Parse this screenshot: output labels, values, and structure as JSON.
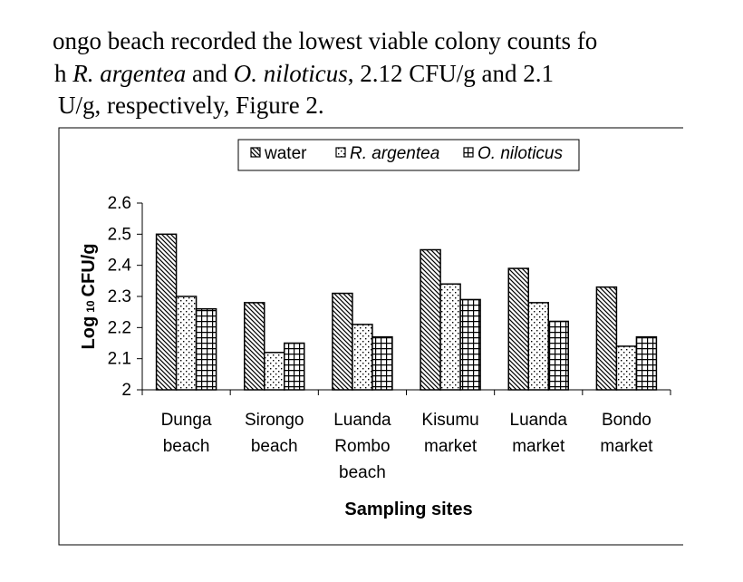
{
  "paragraph": {
    "line1": "ongo beach recorded the lowest viable colony counts fo",
    "line2": {
      "prefix": "h",
      "species1": "R. argentea",
      "joiner": "and",
      "species2": "O. niloticus",
      "suffix": ", 2.12 CFU/g and 2.1"
    },
    "line3": "U/g, respectively, Figure 2."
  },
  "chart_data": {
    "type": "bar",
    "categories": [
      [
        "Dunga",
        "beach"
      ],
      [
        "Sirongo",
        "beach"
      ],
      [
        "Luanda",
        "Rombo",
        "beach"
      ],
      [
        "Kisumu",
        "market"
      ],
      [
        "Luanda",
        "market"
      ],
      [
        "Bondo",
        "market"
      ]
    ],
    "series": [
      {
        "name": "water",
        "pattern": "diagonal",
        "values": [
          2.5,
          2.28,
          2.31,
          2.45,
          2.39,
          2.33
        ]
      },
      {
        "name": "R. argentea",
        "pattern": "dots",
        "values": [
          2.3,
          2.12,
          2.21,
          2.34,
          2.28,
          2.14
        ]
      },
      {
        "name": "O. niloticus",
        "pattern": "grid",
        "values": [
          2.26,
          2.15,
          2.17,
          2.29,
          2.22,
          2.17
        ]
      }
    ],
    "xlabel": "Sampling sites",
    "ylabel": "Log 10 CFU/g",
    "ylim": [
      2,
      2.6
    ],
    "yticks": [
      "2",
      "2.1",
      "2.2",
      "2.3",
      "2.4",
      "2.5",
      "2.6"
    ],
    "grid": false,
    "legend_position": "top"
  }
}
